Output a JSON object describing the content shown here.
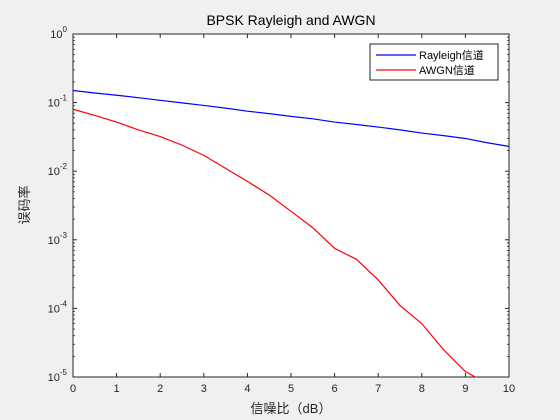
{
  "chart_data": {
    "type": "line",
    "title": "BPSK Rayleigh and AWGN",
    "xlabel": "信噪比（dB）",
    "ylabel": "误码率",
    "xlim": [
      0,
      10
    ],
    "ylim": [
      1e-05,
      1
    ],
    "yscale": "log",
    "grid": false,
    "legend_position": "top-right",
    "x_ticks": [
      "0",
      "1",
      "2",
      "3",
      "4",
      "5",
      "6",
      "7",
      "8",
      "9",
      "10"
    ],
    "y_ticks": [
      {
        "base": "10",
        "exp": "0"
      },
      {
        "base": "10",
        "exp": "-1"
      },
      {
        "base": "10",
        "exp": "-2"
      },
      {
        "base": "10",
        "exp": "-3"
      },
      {
        "base": "10",
        "exp": "-4"
      },
      {
        "base": "10",
        "exp": "-5"
      }
    ],
    "x": [
      0,
      0.5,
      1,
      1.5,
      2,
      2.5,
      3,
      3.5,
      4,
      4.5,
      5,
      5.5,
      6,
      6.5,
      7,
      7.5,
      8,
      8.5,
      9,
      9.5,
      10
    ],
    "series": [
      {
        "name": "Rayleigh信道",
        "color": "#0000ff",
        "values": [
          0.15,
          0.138,
          0.128,
          0.118,
          0.108,
          0.099,
          0.091,
          0.083,
          0.075,
          0.069,
          0.063,
          0.058,
          0.052,
          0.048,
          0.044,
          0.04,
          0.036,
          0.033,
          0.03,
          0.026,
          0.023
        ]
      },
      {
        "name": "AWGN信道",
        "color": "#ff0000",
        "values": [
          0.08,
          0.065,
          0.052,
          0.04,
          0.032,
          0.024,
          0.017,
          0.011,
          0.0071,
          0.0045,
          0.0026,
          0.0015,
          0.00075,
          0.00052,
          0.00026,
          0.00011,
          6e-05,
          2.5e-05,
          1.2e-05,
          8e-06,
          null
        ]
      }
    ]
  }
}
